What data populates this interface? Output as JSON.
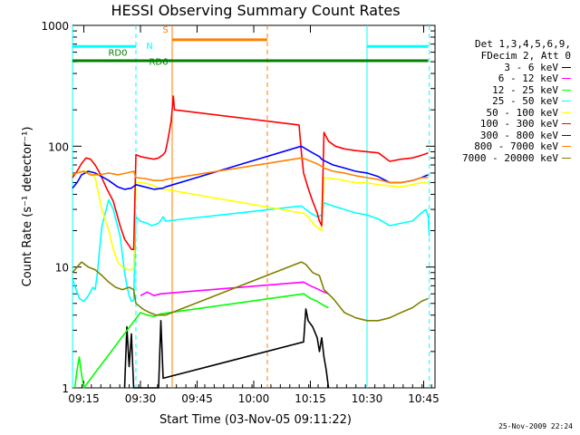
{
  "chart_data": {
    "type": "line",
    "title": "HESSI Observing Summary Count Rates",
    "xlabel": "Start Time (03-Nov-05 09:11:22)",
    "ylabel": "Count Rate (s⁻¹ detector⁻¹)",
    "y_scale": "log",
    "ylim": [
      1,
      1000
    ],
    "xlim_minutes": [
      9.2,
      10.8
    ],
    "x_unit": "hours (UT)",
    "x_ticks": [
      {
        "value": 9.25,
        "label": "09:15"
      },
      {
        "value": 9.5,
        "label": "09:30"
      },
      {
        "value": 9.75,
        "label": "09:45"
      },
      {
        "value": 10.0,
        "label": "10:00"
      },
      {
        "value": 10.25,
        "label": "10:15"
      },
      {
        "value": 10.5,
        "label": "10:30"
      },
      {
        "value": 10.75,
        "label": "10:45"
      }
    ],
    "y_ticks": [
      {
        "value": 1,
        "label": "1"
      },
      {
        "value": 10,
        "label": "10"
      },
      {
        "value": 100,
        "label": "100"
      },
      {
        "value": 1000,
        "label": "1000"
      }
    ],
    "legend_header": [
      "Det 1,3,4,5,6,9,",
      "FDecim 2, Att 0"
    ],
    "legend_position": "right",
    "series": [
      {
        "name": "3 - 6 keV",
        "color": "#000000",
        "points": [
          [
            9.43,
            1
          ],
          [
            9.44,
            3.2
          ],
          [
            9.45,
            1.5
          ],
          [
            9.46,
            2.8
          ],
          [
            9.47,
            1
          ],
          [
            9.58,
            1
          ],
          [
            9.59,
            3.6
          ],
          [
            9.6,
            1.2
          ],
          [
            10.22,
            2.4
          ],
          [
            10.23,
            4.5
          ],
          [
            10.24,
            3.6
          ],
          [
            10.26,
            3.2
          ],
          [
            10.28,
            2.6
          ],
          [
            10.29,
            2.0
          ],
          [
            10.3,
            2.6
          ],
          [
            10.31,
            1.8
          ],
          [
            10.32,
            1.4
          ],
          [
            10.33,
            1.0
          ]
        ]
      },
      {
        "name": "6 - 12 keV",
        "color": "#ff00ff",
        "points": [
          [
            9.5,
            5.8
          ],
          [
            9.53,
            6.2
          ],
          [
            9.56,
            5.8
          ],
          [
            9.59,
            6.0
          ],
          [
            10.22,
            7.5
          ],
          [
            10.25,
            7.0
          ],
          [
            10.28,
            6.6
          ],
          [
            10.31,
            6.2
          ],
          [
            10.33,
            6.0
          ]
        ]
      },
      {
        "name": "12 - 25 keV",
        "color": "#00ff00",
        "points": [
          [
            9.21,
            1
          ],
          [
            9.22,
            1.4
          ],
          [
            9.23,
            1.8
          ],
          [
            9.24,
            1.3
          ],
          [
            9.25,
            1
          ],
          [
            9.5,
            4.2
          ],
          [
            9.53,
            4.0
          ],
          [
            9.56,
            3.9
          ],
          [
            9.59,
            4.1
          ],
          [
            10.22,
            6.0
          ],
          [
            10.25,
            5.5
          ],
          [
            10.28,
            5.2
          ],
          [
            10.31,
            4.8
          ],
          [
            10.33,
            4.6
          ]
        ]
      },
      {
        "name": "25 - 50 keV",
        "color": "#00ffff",
        "points": [
          [
            9.2,
            8
          ],
          [
            9.21,
            7
          ],
          [
            9.23,
            5.5
          ],
          [
            9.25,
            5.2
          ],
          [
            9.27,
            5.8
          ],
          [
            9.29,
            6.8
          ],
          [
            9.3,
            6.5
          ],
          [
            9.31,
            9
          ],
          [
            9.33,
            22
          ],
          [
            9.36,
            36
          ],
          [
            9.38,
            30
          ],
          [
            9.41,
            18
          ],
          [
            9.43,
            9
          ],
          [
            9.44,
            7
          ],
          [
            9.45,
            5.8
          ],
          [
            9.46,
            5.2
          ],
          [
            9.47,
            5.3
          ],
          [
            9.48,
            26
          ],
          [
            9.5,
            24
          ],
          [
            9.53,
            23
          ],
          [
            9.55,
            22
          ],
          [
            9.58,
            23
          ],
          [
            9.6,
            26
          ],
          [
            9.61,
            24
          ],
          [
            10.21,
            32
          ],
          [
            10.23,
            30
          ],
          [
            10.25,
            28
          ],
          [
            10.28,
            26
          ],
          [
            10.3,
            27
          ],
          [
            10.31,
            34
          ],
          [
            10.35,
            32
          ],
          [
            10.4,
            30
          ],
          [
            10.45,
            28
          ],
          [
            10.5,
            27
          ],
          [
            10.55,
            25
          ],
          [
            10.6,
            22
          ],
          [
            10.65,
            23
          ],
          [
            10.7,
            24
          ],
          [
            10.74,
            28
          ],
          [
            10.76,
            30
          ],
          [
            10.77,
            26
          ],
          [
            10.775,
            18
          ]
        ]
      },
      {
        "name": "50 - 100 keV",
        "color": "#ffff00",
        "points": [
          [
            9.2,
            58
          ],
          [
            9.22,
            60
          ],
          [
            9.24,
            62
          ],
          [
            9.27,
            62
          ],
          [
            9.3,
            55
          ],
          [
            9.33,
            30
          ],
          [
            9.36,
            20
          ],
          [
            9.38,
            14
          ],
          [
            9.4,
            11
          ],
          [
            9.42,
            10
          ],
          [
            9.44,
            9.5
          ],
          [
            9.46,
            9.5
          ],
          [
            9.47,
            9.8
          ],
          [
            9.48,
            50
          ],
          [
            9.51,
            50
          ],
          [
            9.55,
            48
          ],
          [
            9.58,
            45
          ],
          [
            9.6,
            44
          ],
          [
            9.61,
            44
          ],
          [
            10.21,
            28
          ],
          [
            10.22,
            28
          ],
          [
            10.24,
            26
          ],
          [
            10.27,
            22
          ],
          [
            10.3,
            20
          ],
          [
            10.31,
            55
          ],
          [
            10.35,
            54
          ],
          [
            10.4,
            52
          ],
          [
            10.45,
            50
          ],
          [
            10.5,
            50
          ],
          [
            10.55,
            48
          ],
          [
            10.6,
            47
          ],
          [
            10.65,
            46
          ],
          [
            10.7,
            48
          ],
          [
            10.74,
            50
          ],
          [
            10.77,
            50
          ]
        ]
      },
      {
        "name": "100 - 300 keV",
        "color": "#ff0000",
        "points": [
          [
            9.2,
            55
          ],
          [
            9.22,
            62
          ],
          [
            9.24,
            72
          ],
          [
            9.26,
            80
          ],
          [
            9.28,
            78
          ],
          [
            9.3,
            70
          ],
          [
            9.32,
            60
          ],
          [
            9.35,
            45
          ],
          [
            9.38,
            35
          ],
          [
            9.41,
            22
          ],
          [
            9.43,
            17
          ],
          [
            9.45,
            15
          ],
          [
            9.46,
            14
          ],
          [
            9.47,
            14
          ],
          [
            9.48,
            85
          ],
          [
            9.5,
            82
          ],
          [
            9.53,
            80
          ],
          [
            9.56,
            78
          ],
          [
            9.58,
            80
          ],
          [
            9.6,
            85
          ],
          [
            9.61,
            90
          ],
          [
            9.62,
            110
          ],
          [
            9.635,
            160
          ],
          [
            9.645,
            260
          ],
          [
            9.65,
            200
          ],
          [
            10.2,
            150
          ],
          [
            10.21,
            90
          ],
          [
            10.22,
            60
          ],
          [
            10.24,
            45
          ],
          [
            10.26,
            35
          ],
          [
            10.28,
            28
          ],
          [
            10.29,
            24
          ],
          [
            10.3,
            22
          ],
          [
            10.31,
            130
          ],
          [
            10.33,
            110
          ],
          [
            10.36,
            100
          ],
          [
            10.4,
            95
          ],
          [
            10.45,
            92
          ],
          [
            10.5,
            90
          ],
          [
            10.55,
            88
          ],
          [
            10.6,
            75
          ],
          [
            10.65,
            78
          ],
          [
            10.7,
            80
          ],
          [
            10.74,
            84
          ],
          [
            10.77,
            88
          ]
        ]
      },
      {
        "name": "300 - 800 keV",
        "color": "#0000ff",
        "points": [
          [
            9.2,
            45
          ],
          [
            9.22,
            50
          ],
          [
            9.24,
            58
          ],
          [
            9.27,
            62
          ],
          [
            9.3,
            60
          ],
          [
            9.33,
            56
          ],
          [
            9.36,
            52
          ],
          [
            9.4,
            46
          ],
          [
            9.43,
            44
          ],
          [
            9.46,
            45
          ],
          [
            9.48,
            48
          ],
          [
            9.52,
            46
          ],
          [
            9.56,
            44
          ],
          [
            9.6,
            45
          ],
          [
            9.61,
            46
          ],
          [
            10.21,
            100
          ],
          [
            10.23,
            95
          ],
          [
            10.26,
            88
          ],
          [
            10.29,
            82
          ],
          [
            10.3,
            78
          ],
          [
            10.31,
            76
          ],
          [
            10.35,
            70
          ],
          [
            10.4,
            66
          ],
          [
            10.45,
            62
          ],
          [
            10.5,
            60
          ],
          [
            10.55,
            56
          ],
          [
            10.6,
            50
          ],
          [
            10.65,
            50
          ],
          [
            10.7,
            52
          ],
          [
            10.74,
            55
          ],
          [
            10.77,
            58
          ]
        ]
      },
      {
        "name": "800 - 7000 keV",
        "color": "#ff8000",
        "points": [
          [
            9.2,
            58
          ],
          [
            9.22,
            60
          ],
          [
            9.25,
            62
          ],
          [
            9.28,
            58
          ],
          [
            9.32,
            58
          ],
          [
            9.36,
            60
          ],
          [
            9.4,
            58
          ],
          [
            9.44,
            60
          ],
          [
            9.47,
            62
          ],
          [
            9.48,
            55
          ],
          [
            9.52,
            54
          ],
          [
            9.56,
            52
          ],
          [
            9.6,
            52
          ],
          [
            9.61,
            53
          ],
          [
            10.21,
            80
          ],
          [
            10.23,
            78
          ],
          [
            10.26,
            74
          ],
          [
            10.29,
            70
          ],
          [
            10.31,
            66
          ],
          [
            10.35,
            62
          ],
          [
            10.4,
            60
          ],
          [
            10.45,
            57
          ],
          [
            10.5,
            55
          ],
          [
            10.55,
            53
          ],
          [
            10.6,
            50
          ],
          [
            10.65,
            50
          ],
          [
            10.7,
            52
          ],
          [
            10.74,
            55
          ],
          [
            10.77,
            55
          ]
        ]
      },
      {
        "name": "7000 - 20000 keV",
        "color": "#808000",
        "points": [
          [
            9.2,
            9
          ],
          [
            9.22,
            10
          ],
          [
            9.24,
            11
          ],
          [
            9.27,
            10
          ],
          [
            9.3,
            9.5
          ],
          [
            9.33,
            8.5
          ],
          [
            9.36,
            7.5
          ],
          [
            9.39,
            6.8
          ],
          [
            9.42,
            6.5
          ],
          [
            9.45,
            6.8
          ],
          [
            9.47,
            6.5
          ],
          [
            9.48,
            5.0
          ],
          [
            9.51,
            4.5
          ],
          [
            9.54,
            4.2
          ],
          [
            9.57,
            4.0
          ],
          [
            9.6,
            4.0
          ],
          [
            9.61,
            4.0
          ],
          [
            10.21,
            11
          ],
          [
            10.23,
            10.5
          ],
          [
            10.26,
            9
          ],
          [
            10.29,
            8.5
          ],
          [
            10.31,
            6.5
          ],
          [
            10.35,
            5.5
          ],
          [
            10.4,
            4.2
          ],
          [
            10.45,
            3.8
          ],
          [
            10.5,
            3.6
          ],
          [
            10.55,
            3.6
          ],
          [
            10.6,
            3.8
          ],
          [
            10.65,
            4.2
          ],
          [
            10.7,
            4.6
          ],
          [
            10.74,
            5.2
          ],
          [
            10.77,
            5.5
          ]
        ]
      }
    ],
    "annotations": {
      "bars": [
        {
          "label": "N",
          "color": "#00ffff",
          "segments": [
            [
              9.2,
              9.48
            ],
            [
              10.5,
              10.77
            ]
          ],
          "value": 670
        },
        {
          "label": "S",
          "color": "#ff8000",
          "segments": [
            [
              9.64,
              10.06
            ]
          ],
          "value": 760
        },
        {
          "label": "RD0",
          "color": "#008000",
          "segments": [
            [
              9.2,
              9.48
            ],
            [
              9.48,
              10.06
            ],
            [
              10.06,
              10.32
            ],
            [
              10.32,
              10.77
            ]
          ],
          "value": 510
        },
        {
          "label": "RD6",
          "color": "#008000",
          "segments": [],
          "value": 580
        }
      ],
      "vlines": [
        {
          "x": 9.2,
          "color": "#00ffff",
          "style": "solid"
        },
        {
          "x": 9.48,
          "color": "#00ffff",
          "style": "dashed"
        },
        {
          "x": 9.64,
          "color": "#ff8000",
          "style": "solid"
        },
        {
          "x": 10.06,
          "color": "#ff8000",
          "style": "dashed"
        },
        {
          "x": 10.5,
          "color": "#00ffff",
          "style": "solid"
        },
        {
          "x": 10.775,
          "color": "#00ffff",
          "style": "dashed"
        }
      ]
    }
  },
  "timestamp": "25-Nov-2009 22:24"
}
